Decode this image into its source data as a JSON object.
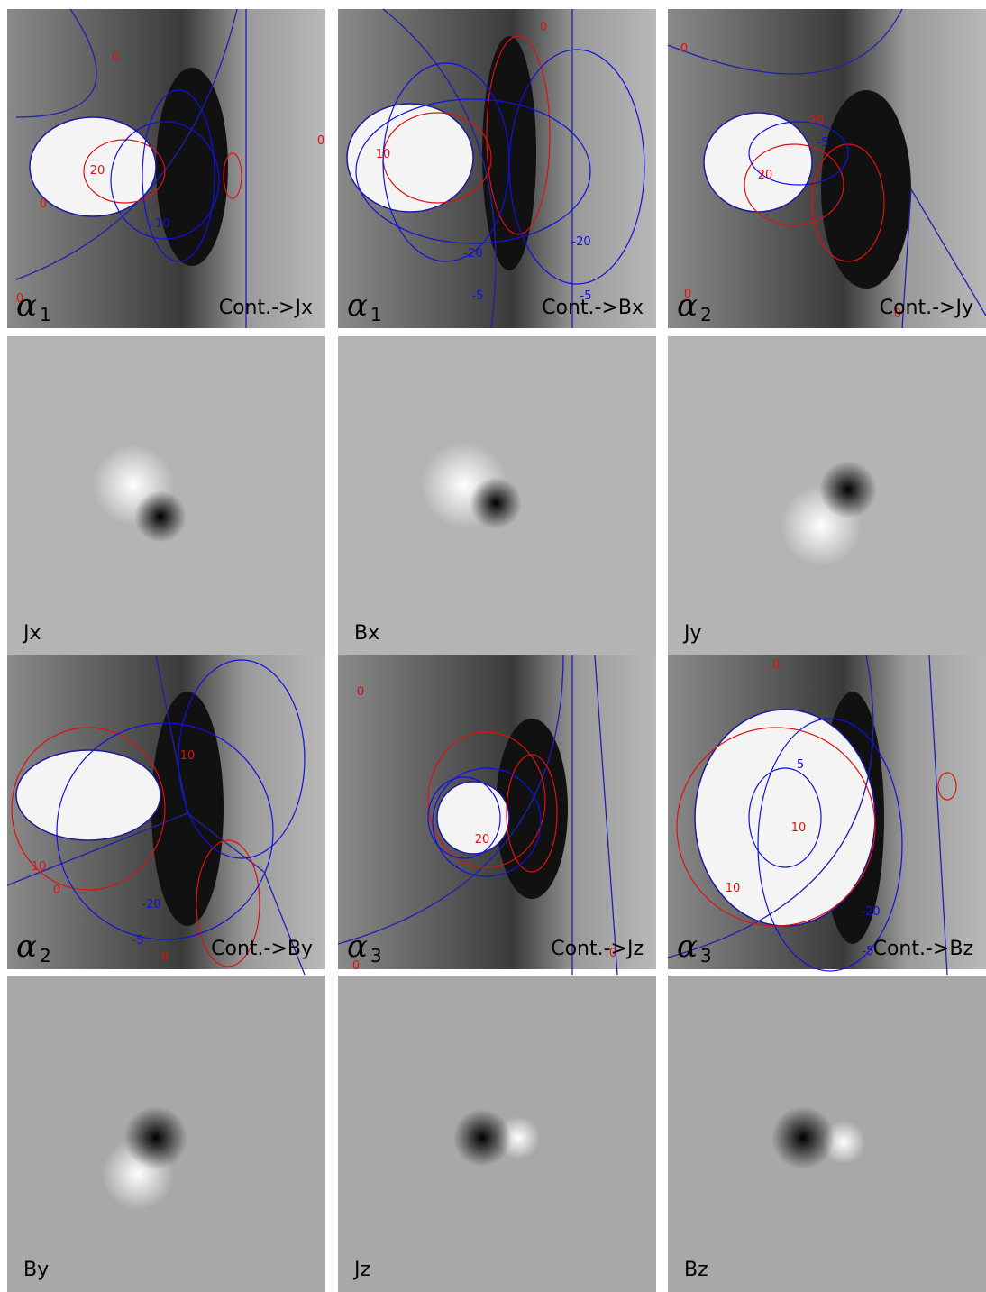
{
  "alpha_panels": [
    {
      "symbol": "α",
      "subscript": "1",
      "caption": "Cont.->Jx",
      "contour_labels": [
        20,
        -10,
        0,
        0,
        0,
        0
      ]
    },
    {
      "symbol": "α",
      "subscript": "1",
      "caption": "Cont.->Bx",
      "contour_labels": [
        10,
        -20,
        -20,
        -5,
        -5,
        0
      ]
    },
    {
      "symbol": "α",
      "subscript": "2",
      "caption": "Cont.->Jy",
      "contour_labels": [
        20,
        20,
        -5,
        0,
        0,
        0
      ]
    },
    {
      "symbol": "α",
      "subscript": "2",
      "caption": "Cont.->By",
      "contour_labels": [
        10,
        10,
        -20,
        -5,
        0,
        0
      ]
    },
    {
      "symbol": "α",
      "subscript": "3",
      "caption": "Cont.->Jz",
      "contour_labels": [
        20,
        0,
        0,
        0
      ]
    },
    {
      "symbol": "α",
      "subscript": "3",
      "caption": "Cont.->Bz",
      "contour_labels": [
        5,
        10,
        10,
        -20,
        -5,
        0
      ]
    }
  ],
  "field_panels": [
    "Jx",
    "Bx",
    "Jy",
    "By",
    "Jz",
    "Bz"
  ]
}
